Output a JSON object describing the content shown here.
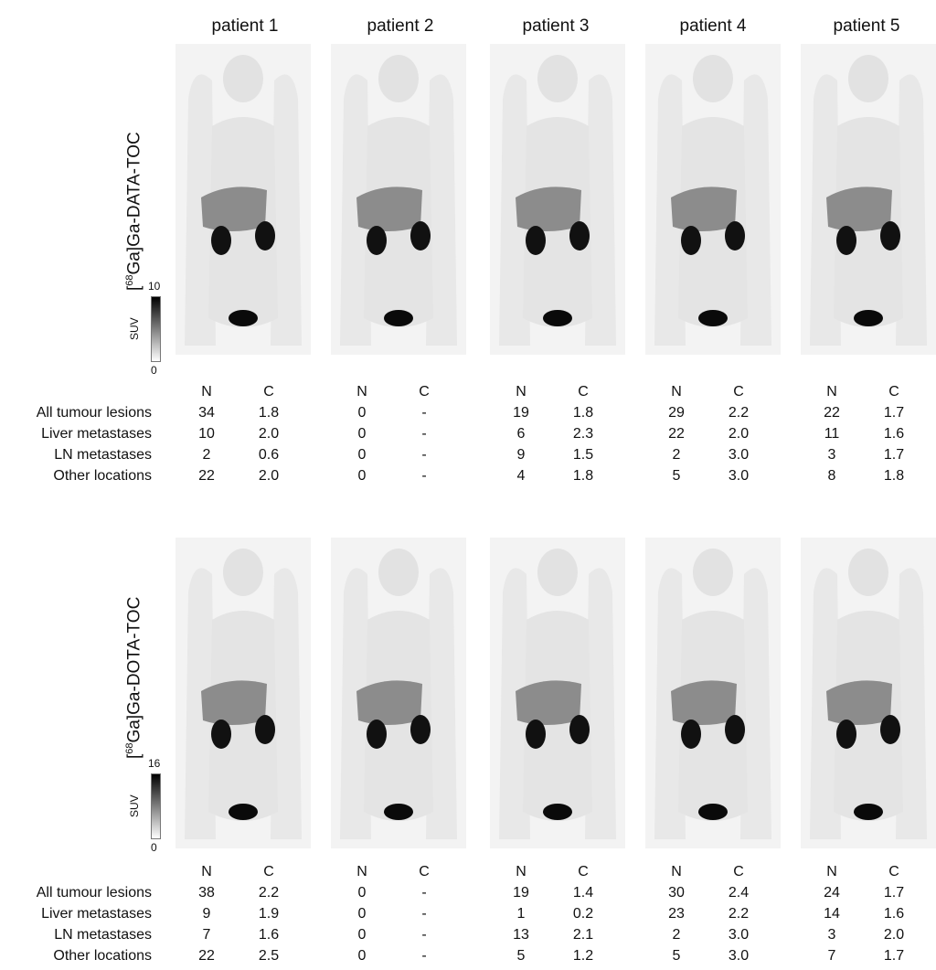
{
  "patients": [
    "patient 1",
    "patient 2",
    "patient 3",
    "patient 4",
    "patient 5"
  ],
  "panels": [
    {
      "tracer": {
        "prefix": "[",
        "isotope": "68",
        "name": "Ga]Ga-DATA-TOC"
      },
      "suv_scale": {
        "unit": "SUV",
        "max": "10",
        "min": "0"
      },
      "column_headers": {
        "n": "N",
        "c": "C"
      },
      "row_labels": [
        "All tumour lesions",
        "Liver metastases",
        "LN metastases",
        "Other locations"
      ],
      "values": [
        [
          [
            "34",
            "1.8"
          ],
          [
            "10",
            "2.0"
          ],
          [
            "2",
            "0.6"
          ],
          [
            "22",
            "2.0"
          ]
        ],
        [
          [
            "0",
            "-"
          ],
          [
            "0",
            "-"
          ],
          [
            "0",
            "-"
          ],
          [
            "0",
            "-"
          ]
        ],
        [
          [
            "19",
            "1.8"
          ],
          [
            "6",
            "2.3"
          ],
          [
            "9",
            "1.5"
          ],
          [
            "4",
            "1.8"
          ]
        ],
        [
          [
            "29",
            "2.2"
          ],
          [
            "22",
            "2.0"
          ],
          [
            "2",
            "3.0"
          ],
          [
            "5",
            "3.0"
          ]
        ],
        [
          [
            "22",
            "1.7"
          ],
          [
            "11",
            "1.6"
          ],
          [
            "3",
            "1.7"
          ],
          [
            "8",
            "1.8"
          ]
        ]
      ]
    },
    {
      "tracer": {
        "prefix": "[",
        "isotope": "68",
        "name": "Ga]Ga-DOTA-TOC"
      },
      "suv_scale": {
        "unit": "SUV",
        "max": "16",
        "min": "0"
      },
      "column_headers": {
        "n": "N",
        "c": "C"
      },
      "row_labels": [
        "All tumour lesions",
        "Liver metastases",
        "LN metastases",
        "Other locations"
      ],
      "values": [
        [
          [
            "38",
            "2.2"
          ],
          [
            "9",
            "1.9"
          ],
          [
            "7",
            "1.6"
          ],
          [
            "22",
            "2.5"
          ]
        ],
        [
          [
            "0",
            "-"
          ],
          [
            "0",
            "-"
          ],
          [
            "0",
            "-"
          ],
          [
            "0",
            "-"
          ]
        ],
        [
          [
            "19",
            "1.4"
          ],
          [
            "1",
            "0.2"
          ],
          [
            "13",
            "2.1"
          ],
          [
            "5",
            "1.2"
          ]
        ],
        [
          [
            "30",
            "2.4"
          ],
          [
            "23",
            "2.2"
          ],
          [
            "2",
            "3.0"
          ],
          [
            "5",
            "3.0"
          ]
        ],
        [
          [
            "24",
            "1.7"
          ],
          [
            "14",
            "1.6"
          ],
          [
            "3",
            "2.0"
          ],
          [
            "7",
            "1.7"
          ]
        ]
      ]
    }
  ]
}
